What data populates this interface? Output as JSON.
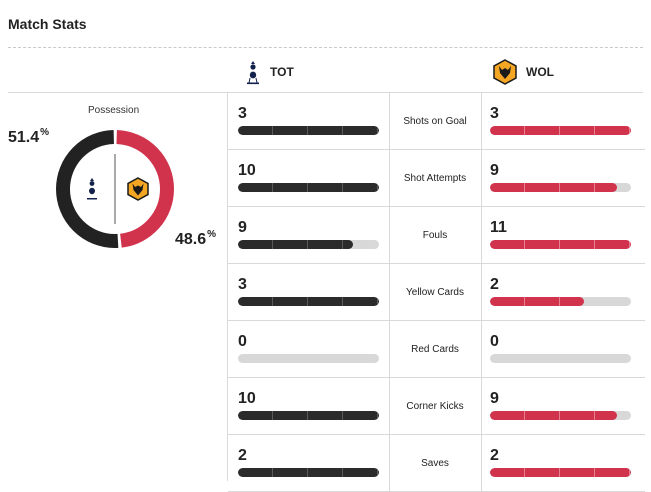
{
  "header": {
    "title": "Match Stats"
  },
  "teams": {
    "home": {
      "abbr": "TOT",
      "logo_icon": "tottenham-crest",
      "color": "#222222"
    },
    "away": {
      "abbr": "WOL",
      "logo_icon": "wolves-crest",
      "color": "#d1334d"
    }
  },
  "possession": {
    "label": "Possession",
    "home_value": "51.4",
    "away_value": "48.6",
    "unit": "%"
  },
  "stats": [
    {
      "label": "Shots on Goal",
      "home": "3",
      "away": "3",
      "home_fill": 1.0,
      "away_fill": 1.0
    },
    {
      "label": "Shot Attempts",
      "home": "10",
      "away": "9",
      "home_fill": 1.0,
      "away_fill": 0.9
    },
    {
      "label": "Fouls",
      "home": "9",
      "away": "11",
      "home_fill": 0.818,
      "away_fill": 1.0
    },
    {
      "label": "Yellow Cards",
      "home": "3",
      "away": "2",
      "home_fill": 1.0,
      "away_fill": 0.667
    },
    {
      "label": "Red Cards",
      "home": "0",
      "away": "0",
      "home_fill": 0,
      "away_fill": 0
    },
    {
      "label": "Corner Kicks",
      "home": "10",
      "away": "9",
      "home_fill": 1.0,
      "away_fill": 0.9
    },
    {
      "label": "Saves",
      "home": "2",
      "away": "2",
      "home_fill": 1.0,
      "away_fill": 1.0
    }
  ]
}
